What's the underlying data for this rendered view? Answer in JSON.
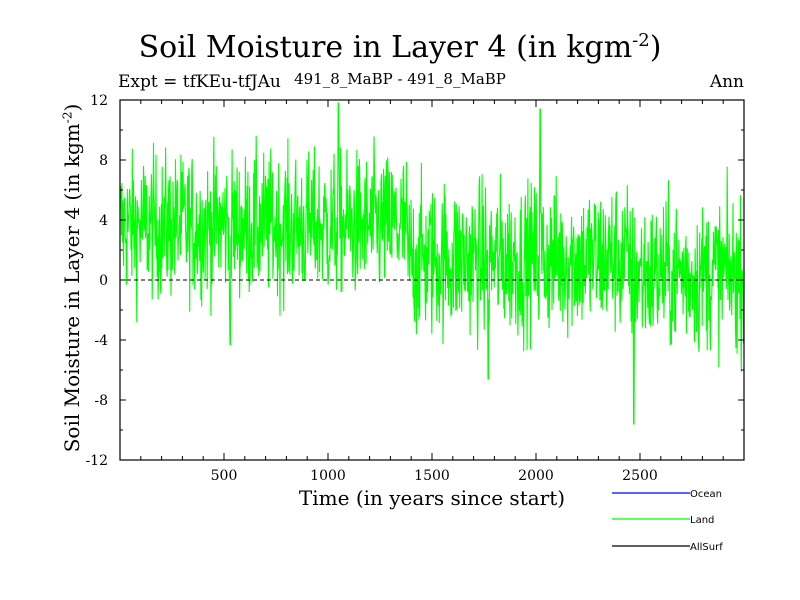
{
  "chart_data": {
    "type": "line",
    "title_main": "Soil Moisture in Layer 4 (in kgm",
    "title_sup": "-2",
    "title_close": ")",
    "expt_label": "Expt = tfKEu-tfJAu",
    "center_label": "491_8_MaBP - 491_8_MaBP",
    "period_label": "Ann",
    "xlabel": "Time (in years since start)",
    "ylabel_main": "Soil Moisture in Layer 4 (in kgm",
    "ylabel_sup": "-2",
    "ylabel_close": ")",
    "xlim": [
      0,
      3000
    ],
    "ylim": [
      -12,
      12
    ],
    "x_ticks": [
      500,
      1000,
      1500,
      2000,
      2500
    ],
    "x_tick_labels": [
      "500",
      "1000",
      "1500",
      "2000",
      "2500"
    ],
    "y_ticks": [
      -12,
      -8,
      -4,
      0,
      4,
      8,
      12
    ],
    "y_tick_labels": [
      "-12",
      "-8",
      "-4",
      "0",
      "4",
      "8",
      "12"
    ],
    "zero_line": true,
    "segments": [
      {
        "x_start": 0,
        "x_end": 1380,
        "mean": 3.6,
        "spread": 3.2
      },
      {
        "x_start": 1380,
        "x_end": 2450,
        "mean": 1.4,
        "spread": 3.4
      },
      {
        "x_start": 2450,
        "x_end": 3000,
        "mean": 0.4,
        "spread": 3.3
      }
    ],
    "extremes": [
      {
        "x": 1050,
        "y": 11.8
      },
      {
        "x": 2020,
        "y": 11.4
      },
      {
        "x": 2470,
        "y": -9.6
      },
      {
        "x": 1770,
        "y": -6.6
      },
      {
        "x": 530,
        "y": -4.3
      }
    ],
    "series": [
      {
        "name": "Ocean",
        "color": "#0000ff",
        "visible": false
      },
      {
        "name": "Land",
        "color": "#00ff00",
        "visible": true
      },
      {
        "name": "AllSurf",
        "color": "#000000",
        "visible": false
      }
    ]
  }
}
